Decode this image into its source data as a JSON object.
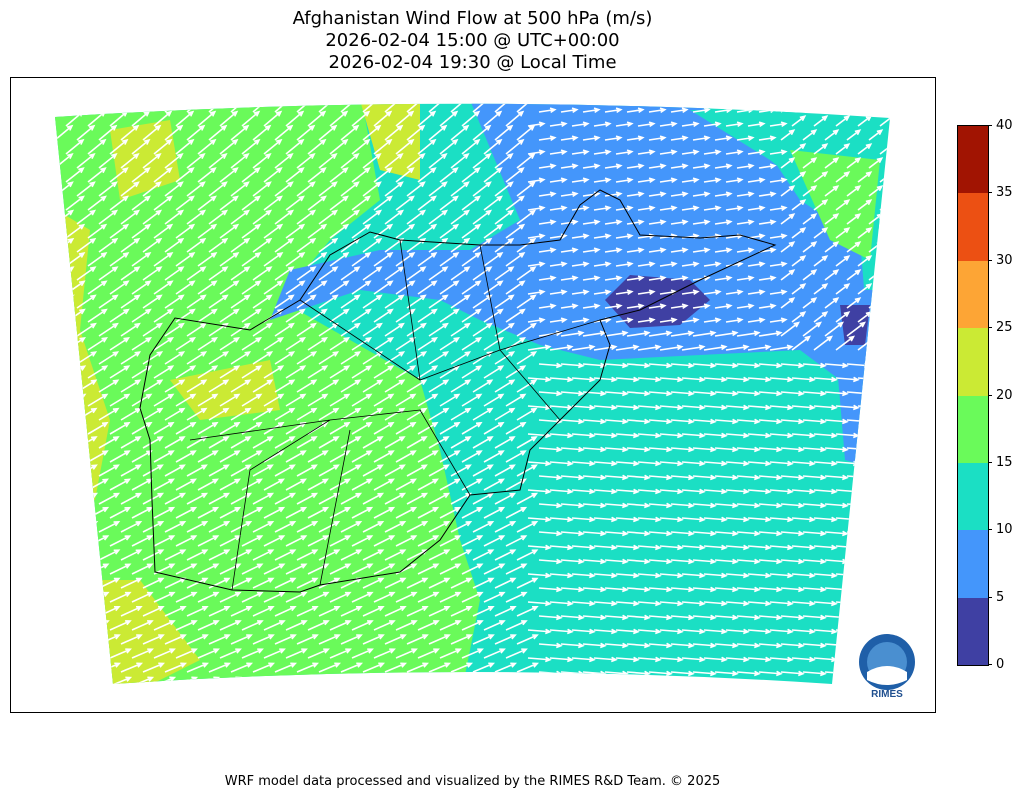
{
  "title": {
    "line1": "Afghanistan Wind Flow at 500 hPa (m/s)",
    "line2": "2026-02-04 15:00 @ UTC+00:00",
    "line3": "2026-02-04 19:30 @ Local Time"
  },
  "colorbar": {
    "unit": "m/s",
    "ticks": [
      "0",
      "5",
      "10",
      "15",
      "20",
      "25",
      "30",
      "35",
      "40"
    ],
    "colors": [
      "#3f40a3",
      "#4496fb",
      "#1bdfc4",
      "#6afa5a",
      "#cbea34",
      "#fda535",
      "#ec5013",
      "#a11402"
    ]
  },
  "map": {
    "field": "wind speed at 500 hPa",
    "arrow_color": "#ffffff",
    "border_color": "#000000",
    "logo": "RIMES"
  },
  "footer": "WRF model data processed and visualized by the RIMES R&D Team. © 2025"
}
